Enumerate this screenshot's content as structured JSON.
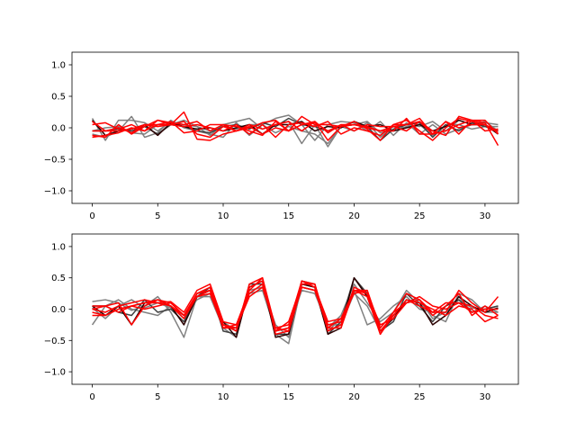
{
  "chart_data": [
    {
      "type": "line",
      "title": "",
      "xlabel": "",
      "ylabel": "",
      "xlim": [
        -1.55,
        32.55
      ],
      "ylim": [
        -1.2,
        1.2
      ],
      "xticks": [
        0,
        5,
        10,
        15,
        20,
        25,
        30
      ],
      "yticks": [
        -1.0,
        -0.5,
        0.0,
        0.5,
        1.0
      ],
      "xtick_labels": [
        "0",
        "5",
        "10",
        "15",
        "20",
        "25",
        "30"
      ],
      "ytick_labels": [
        "−1.0",
        "−0.5",
        "0.0",
        "0.5",
        "1.0"
      ],
      "grid": false,
      "legend": "none",
      "x": [
        0,
        1,
        2,
        3,
        4,
        5,
        6,
        7,
        8,
        9,
        10,
        11,
        12,
        13,
        14,
        15,
        16,
        17,
        18,
        19,
        20,
        21,
        22,
        23,
        24,
        25,
        26,
        27,
        28,
        29,
        30,
        31
      ],
      "series": [
        {
          "color": "#808080",
          "values": [
            0.15,
            -0.2,
            0.12,
            0.12,
            0.08,
            -0.05,
            0.1,
            0.05,
            0.02,
            -0.12,
            0.05,
            0.1,
            0.15,
            -0.02,
            0.05,
            0.1,
            -0.25,
            0.05,
            -0.3,
            0.02,
            -0.05,
            0.08,
            -0.15,
            0.02,
            0.05,
            0.02,
            0.1,
            -0.05,
            0.12,
            0.05,
            0.08,
            0.05
          ]
        },
        {
          "color": "#808080",
          "values": [
            -0.1,
            -0.15,
            -0.05,
            0.18,
            -0.15,
            -0.08,
            0.12,
            0.0,
            -0.05,
            -0.1,
            -0.15,
            0.08,
            -0.12,
            0.05,
            0.15,
            0.2,
            0.05,
            -0.2,
            0.05,
            0.1,
            0.08,
            -0.05,
            0.1,
            -0.12,
            0.08,
            -0.1,
            0.05,
            -0.1,
            -0.02,
            0.05,
            0.1,
            -0.05
          ]
        },
        {
          "color": "#808080",
          "values": [
            -0.05,
            0.0,
            0.02,
            -0.08,
            -0.1,
            0.05,
            0.05,
            0.12,
            0.02,
            -0.05,
            0.02,
            -0.02,
            0.05,
            0.05,
            -0.08,
            0.02,
            -0.05,
            -0.1,
            -0.25,
            0.02,
            0.05,
            0.1,
            -0.08,
            -0.05,
            0.02,
            0.05,
            -0.12,
            0.05,
            0.05,
            -0.02,
            0.02,
            0.02
          ]
        },
        {
          "color": "#404040",
          "values": [
            -0.05,
            -0.05,
            -0.02,
            -0.05,
            0.02,
            -0.1,
            0.05,
            0.02,
            -0.05,
            -0.08,
            0.02,
            0.05,
            -0.02,
            0.08,
            0.02,
            0.15,
            0.05,
            0.02,
            -0.05,
            0.02,
            0.05,
            0.02,
            -0.2,
            -0.02,
            0.05,
            0.08,
            -0.15,
            0.05,
            -0.05,
            0.08,
            0.02,
            -0.05
          ]
        },
        {
          "color": "#2a0000",
          "values": [
            0.12,
            -0.12,
            -0.05,
            -0.02,
            0.05,
            -0.12,
            0.08,
            0.02,
            -0.02,
            0.0,
            -0.05,
            0.0,
            0.05,
            -0.1,
            0.05,
            0.05,
            0.1,
            -0.05,
            0.02,
            0.0,
            0.1,
            0.02,
            0.05,
            -0.05,
            0.0,
            0.05,
            -0.05,
            0.02,
            0.12,
            0.05,
            0.05,
            -0.1
          ]
        },
        {
          "color": "#ff0000",
          "values": [
            -0.15,
            -0.12,
            -0.08,
            0.0,
            -0.05,
            0.05,
            0.05,
            0.25,
            -0.18,
            -0.2,
            -0.1,
            -0.05,
            0.02,
            -0.1,
            0.0,
            -0.05,
            0.18,
            0.05,
            0.05,
            0.02,
            0.1,
            -0.02,
            -0.2,
            0.05,
            0.05,
            0.15,
            -0.1,
            0.1,
            -0.1,
            0.12,
            0.08,
            -0.28
          ]
        },
        {
          "color": "#ff0000",
          "values": [
            -0.12,
            -0.15,
            0.05,
            -0.1,
            0.02,
            0.12,
            0.08,
            0.05,
            0.1,
            -0.05,
            0.05,
            0.02,
            -0.05,
            -0.12,
            0.1,
            -0.05,
            0.05,
            0.1,
            -0.08,
            0.05,
            -0.05,
            0.05,
            0.02,
            0.02,
            -0.05,
            0.1,
            -0.05,
            -0.12,
            0.18,
            0.12,
            0.12,
            -0.1
          ]
        },
        {
          "color": "#ff0000",
          "values": [
            0.1,
            -0.05,
            -0.05,
            -0.02,
            0.05,
            0.05,
            0.1,
            -0.08,
            -0.05,
            0.05,
            0.05,
            -0.05,
            0.0,
            0.08,
            0.12,
            -0.05,
            0.05,
            0.08,
            -0.05,
            0.05,
            0.05,
            0.0,
            -0.05,
            0.02,
            0.05,
            0.1,
            -0.1,
            -0.05,
            0.05,
            0.12,
            -0.05,
            -0.02
          ]
        },
        {
          "color": "#ff0000",
          "values": [
            0.05,
            0.08,
            -0.02,
            0.05,
            -0.05,
            0.12,
            0.05,
            0.02,
            0.05,
            0.0,
            -0.05,
            0.05,
            -0.1,
            0.05,
            -0.15,
            0.05,
            0.08,
            0.02,
            0.1,
            -0.1,
            0.0,
            -0.05,
            -0.12,
            0.05,
            0.12,
            -0.05,
            -0.2,
            0.0,
            0.15,
            0.1,
            0.05,
            -0.05
          ]
        },
        {
          "color": "#ff0000",
          "values": [
            -0.05,
            -0.05,
            0.0,
            -0.08,
            0.05,
            0.02,
            0.05,
            0.1,
            -0.1,
            -0.15,
            0.02,
            -0.05,
            0.05,
            -0.02,
            0.05,
            0.1,
            -0.05,
            0.1,
            -0.2,
            0.02,
            0.05,
            0.02,
            -0.05,
            -0.05,
            0.15,
            -0.1,
            -0.1,
            0.1,
            0.0,
            0.05,
            0.05,
            -0.08
          ]
        }
      ]
    },
    {
      "type": "line",
      "title": "",
      "xlabel": "",
      "ylabel": "",
      "xlim": [
        -1.55,
        32.55
      ],
      "ylim": [
        -1.2,
        1.2
      ],
      "xticks": [
        0,
        5,
        10,
        15,
        20,
        25,
        30
      ],
      "yticks": [
        -1.0,
        -0.5,
        0.0,
        0.5,
        1.0
      ],
      "xtick_labels": [
        "0",
        "5",
        "10",
        "15",
        "20",
        "25",
        "30"
      ],
      "ytick_labels": [
        "−1.0",
        "−0.5",
        "0.0",
        "0.5",
        "1.0"
      ],
      "grid": false,
      "legend": "none",
      "x": [
        0,
        1,
        2,
        3,
        4,
        5,
        6,
        7,
        8,
        9,
        10,
        11,
        12,
        13,
        14,
        15,
        16,
        17,
        18,
        19,
        20,
        21,
        22,
        23,
        24,
        25,
        26,
        27,
        28,
        29,
        30,
        31
      ],
      "series": [
        {
          "color": "#808080",
          "values": [
            0.12,
            0.15,
            0.1,
            -0.02,
            0.05,
            0.2,
            -0.05,
            -0.45,
            0.2,
            0.2,
            -0.3,
            -0.45,
            0.35,
            0.45,
            -0.4,
            -0.55,
            0.4,
            0.35,
            -0.3,
            -0.1,
            0.4,
            0.1,
            -0.2,
            -0.05,
            0.3,
            0.1,
            -0.1,
            -0.2,
            0.25,
            0.15,
            -0.05,
            -0.05
          ]
        },
        {
          "color": "#808080",
          "values": [
            -0.25,
            0.05,
            0.15,
            0.0,
            -0.05,
            -0.1,
            0.05,
            -0.15,
            0.25,
            0.3,
            -0.2,
            -0.35,
            0.3,
            0.35,
            -0.25,
            -0.45,
            0.35,
            0.3,
            -0.35,
            -0.15,
            0.3,
            -0.25,
            -0.15,
            0.05,
            0.2,
            0.0,
            -0.05,
            -0.05,
            0.15,
            0.02,
            0.0,
            0.05
          ]
        },
        {
          "color": "#808080",
          "values": [
            0.02,
            -0.15,
            0.05,
            0.15,
            0.02,
            0.1,
            0.02,
            -0.1,
            0.15,
            0.25,
            -0.25,
            -0.3,
            0.25,
            0.3,
            -0.35,
            -0.3,
            0.3,
            0.25,
            -0.25,
            -0.25,
            0.25,
            0.05,
            -0.35,
            -0.1,
            0.1,
            0.15,
            -0.15,
            -0.05,
            0.2,
            -0.05,
            0.05,
            -0.05
          ]
        },
        {
          "color": "#404040",
          "values": [
            0.05,
            0.05,
            -0.05,
            -0.1,
            0.15,
            -0.05,
            0.0,
            -0.2,
            0.2,
            0.35,
            -0.35,
            -0.4,
            0.4,
            0.4,
            -0.4,
            -0.4,
            0.45,
            0.4,
            -0.4,
            -0.2,
            0.5,
            0.25,
            -0.35,
            -0.2,
            0.25,
            0.05,
            -0.2,
            0.05,
            0.15,
            -0.05,
            0.0,
            0.05
          ]
        },
        {
          "color": "#2a0000",
          "values": [
            0.05,
            -0.1,
            0.05,
            -0.25,
            0.1,
            0.15,
            0.05,
            -0.25,
            0.2,
            0.3,
            -0.2,
            -0.45,
            0.35,
            0.45,
            -0.45,
            -0.4,
            0.4,
            0.35,
            -0.4,
            -0.3,
            0.5,
            0.2,
            -0.35,
            -0.15,
            0.15,
            0.1,
            -0.25,
            -0.1,
            0.2,
            0.05,
            -0.05,
            0.02
          ]
        },
        {
          "color": "#ff0000",
          "values": [
            0.05,
            0.05,
            0.1,
            -0.25,
            0.05,
            0.15,
            0.1,
            -0.1,
            0.25,
            0.35,
            -0.25,
            -0.35,
            0.4,
            0.5,
            -0.4,
            -0.35,
            0.45,
            0.4,
            -0.35,
            -0.25,
            0.35,
            0.25,
            -0.4,
            -0.05,
            0.25,
            0.15,
            -0.1,
            0.05,
            0.25,
            -0.1,
            0.05,
            -0.1
          ]
        },
        {
          "color": "#ff0000",
          "values": [
            -0.05,
            -0.1,
            0.0,
            0.05,
            0.1,
            0.15,
            0.05,
            -0.1,
            0.25,
            0.3,
            -0.3,
            -0.3,
            0.35,
            0.45,
            -0.35,
            -0.2,
            0.4,
            0.4,
            -0.3,
            -0.15,
            0.3,
            0.3,
            -0.35,
            -0.1,
            0.15,
            0.05,
            -0.05,
            0.1,
            0.1,
            0.05,
            -0.1,
            -0.15
          ]
        },
        {
          "color": "#ff0000",
          "values": [
            0.0,
            0.05,
            -0.05,
            0.05,
            0.1,
            0.1,
            0.12,
            -0.05,
            0.3,
            0.4,
            -0.2,
            -0.25,
            0.3,
            0.5,
            -0.3,
            -0.25,
            0.45,
            0.35,
            -0.2,
            -0.15,
            0.25,
            0.3,
            -0.3,
            -0.05,
            0.1,
            0.15,
            -0.05,
            -0.05,
            0.3,
            0.1,
            -0.05,
            0.2
          ]
        },
        {
          "color": "#ff0000",
          "values": [
            0.0,
            -0.05,
            0.05,
            0.1,
            0.15,
            0.1,
            0.05,
            -0.15,
            0.2,
            0.25,
            -0.3,
            -0.25,
            0.25,
            0.4,
            -0.35,
            -0.3,
            0.35,
            0.3,
            -0.25,
            -0.2,
            0.3,
            0.25,
            -0.25,
            -0.15,
            0.1,
            0.2,
            0.05,
            0.0,
            0.1,
            -0.05,
            0.0,
            0.0
          ]
        },
        {
          "color": "#ff0000",
          "values": [
            -0.1,
            -0.1,
            0.0,
            0.05,
            0.0,
            0.05,
            0.1,
            -0.1,
            0.2,
            0.3,
            -0.25,
            -0.3,
            0.2,
            0.35,
            -0.3,
            -0.35,
            0.35,
            0.3,
            -0.3,
            -0.3,
            0.3,
            0.2,
            -0.4,
            -0.1,
            0.15,
            0.1,
            0.0,
            -0.1,
            0.05,
            0.0,
            -0.2,
            -0.1
          ]
        }
      ]
    }
  ]
}
